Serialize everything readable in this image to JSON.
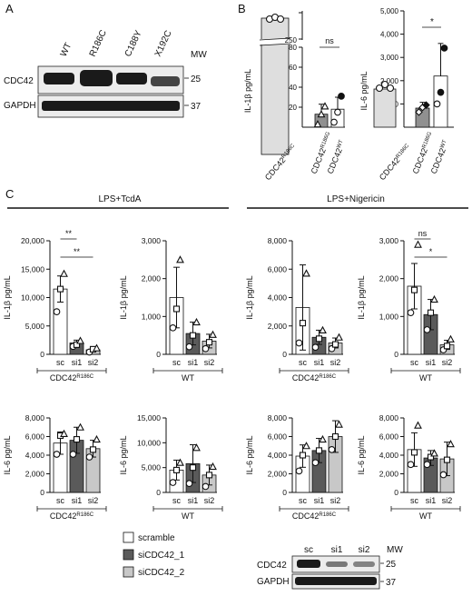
{
  "panels": {
    "a": "A",
    "b": "B",
    "c": "C"
  },
  "colors": {
    "sc": "#ffffff",
    "si1": "#5a5a5a",
    "si2": "#c8c8c8",
    "r186c": "#dedede",
    "r186g": "#909090",
    "wt_b": "#ffffff",
    "wt_b_bar": "#ffffff"
  },
  "blot_a": {
    "lanes": [
      "WT",
      "R186C",
      "C188Y",
      "X192C"
    ],
    "rows": [
      "CDC42",
      "GAPDH"
    ],
    "mw_label": "MW",
    "mw": [
      "25",
      "37"
    ]
  },
  "blot_c": {
    "lanes": [
      "sc",
      "si1",
      "si2"
    ],
    "rows": [
      "CDC42",
      "GAPDH"
    ],
    "mw_label": "MW",
    "mw": [
      "25",
      "37"
    ]
  },
  "conditions": {
    "left": "LPS+TcdA",
    "right": "LPS+Nigericin"
  },
  "legend": [
    "scramble",
    "siCDC42_1",
    "siCDC42_2"
  ],
  "sig": {
    "ns": "ns",
    "star": "*",
    "star2": "**"
  },
  "chart_data": [
    {
      "id": "B-IL1b",
      "type": "bar",
      "ylabel": "IL-1β pg/mL",
      "broken_axis": true,
      "upper_ticks": [
        "250"
      ],
      "lower_ticks": [
        "20",
        "40",
        "60",
        "80"
      ],
      "ylim_lower": [
        0,
        80
      ],
      "categories": [
        "CDC42R186C",
        "CDC42R186G",
        "CDC42WT"
      ],
      "values": [
        2500,
        13,
        18
      ],
      "sd": [
        0,
        10,
        12
      ],
      "points": [
        [
          2500,
          2500,
          2500
        ],
        [
          3,
          13,
          21
        ],
        [
          5,
          15,
          31
        ]
      ],
      "sig": {
        "pair": [
          1,
          2
        ],
        "label": "ns"
      }
    },
    {
      "id": "B-IL6",
      "type": "bar",
      "ylabel": "IL-6 pg/mL",
      "yticks": [
        "1,000",
        "2,000",
        "3,000",
        "4,000",
        "5,000"
      ],
      "ylim": [
        0,
        5000
      ],
      "categories": [
        "CDC42R186C",
        "CDC42R186G",
        "CDC42WT"
      ],
      "values": [
        1600,
        820,
        2200
      ],
      "sd": [
        0,
        250,
        1400
      ],
      "points": [
        [
          1400,
          1600,
          1800
        ],
        [
          650,
          850,
          950
        ],
        [
          1000,
          1500,
          3400
        ]
      ],
      "sig": {
        "pair": [
          1,
          2
        ],
        "label": "*"
      }
    },
    {
      "id": "C-TcdA-IL1b-R186C",
      "type": "bar",
      "ylabel": "IL-1β pg/mL",
      "yticks": [
        "0",
        "5,000",
        "10,000",
        "15,000",
        "20,000"
      ],
      "ylim": [
        0,
        20000
      ],
      "categories": [
        "sc",
        "si1",
        "si2"
      ],
      "group": "CDC42R186C",
      "values": [
        11500,
        2000,
        800
      ],
      "sd": [
        2300,
        500,
        300
      ],
      "points": [
        [
          7500,
          11500,
          14200
        ],
        [
          1400,
          1700,
          2400
        ],
        [
          400,
          900,
          1100
        ]
      ],
      "sig": [
        {
          "pair": [
            0,
            1
          ],
          "label": "**"
        },
        {
          "pair": [
            0,
            2
          ],
          "label": "**"
        }
      ]
    },
    {
      "id": "C-TcdA-IL1b-WT",
      "type": "bar",
      "ylabel": "IL-1β pg/mL",
      "yticks": [
        "0",
        "1,000",
        "2,000",
        "3,000"
      ],
      "ylim": [
        0,
        3000
      ],
      "categories": [
        "sc",
        "si1",
        "si2"
      ],
      "group": "WT",
      "values": [
        1500,
        550,
        350
      ],
      "sd": [
        800,
        300,
        180
      ],
      "points": [
        [
          700,
          1200,
          2500
        ],
        [
          200,
          500,
          850
        ],
        [
          150,
          320,
          520
        ]
      ]
    },
    {
      "id": "C-Nig-IL1b-R186C",
      "type": "bar",
      "ylabel": "IL-1β pg/mL",
      "yticks": [
        "0",
        "2,000",
        "4,000",
        "6,000",
        "8,000"
      ],
      "ylim": [
        0,
        8000
      ],
      "categories": [
        "sc",
        "si1",
        "si2"
      ],
      "group": "CDC42R186C",
      "values": [
        3300,
        1200,
        800
      ],
      "sd": [
        3000,
        500,
        350
      ],
      "points": [
        [
          800,
          2200,
          5700
        ],
        [
          500,
          1100,
          1700
        ],
        [
          400,
          700,
          1200
        ]
      ]
    },
    {
      "id": "C-Nig-IL1b-WT",
      "type": "bar",
      "ylabel": "IL-1β pg/mL",
      "yticks": [
        "0",
        "1,000",
        "2,000",
        "3,000"
      ],
      "ylim": [
        0,
        3000
      ],
      "categories": [
        "sc",
        "si1",
        "si2"
      ],
      "group": "WT",
      "values": [
        1800,
        1050,
        250
      ],
      "sd": [
        600,
        400,
        120
      ],
      "points": [
        [
          1100,
          1700,
          2900
        ],
        [
          650,
          1100,
          1450
        ],
        [
          120,
          220,
          400
        ]
      ],
      "sig": [
        {
          "pair": [
            0,
            1
          ],
          "label": "ns"
        },
        {
          "pair": [
            0,
            2
          ],
          "label": "*"
        }
      ]
    },
    {
      "id": "C-TcdA-IL6-R186C",
      "type": "bar",
      "ylabel": "IL-6 pg/mL",
      "yticks": [
        "0",
        "2,000",
        "4,000",
        "6,000",
        "8,000"
      ],
      "ylim": [
        0,
        8000
      ],
      "categories": [
        "sc",
        "si1",
        "si2"
      ],
      "group": "CDC42R186C",
      "values": [
        5300,
        5600,
        4700
      ],
      "sd": [
        1200,
        1400,
        900
      ],
      "points": [
        [
          4100,
          6100,
          6300
        ],
        [
          4100,
          5700,
          7000
        ],
        [
          3800,
          4600,
          5700
        ]
      ]
    },
    {
      "id": "C-TcdA-IL6-WT",
      "type": "bar",
      "ylabel": "IL-6 pg/mL",
      "yticks": [
        "0",
        "5,000",
        "10,000",
        "15,000"
      ],
      "ylim": [
        0,
        15000
      ],
      "categories": [
        "sc",
        "si1",
        "si2"
      ],
      "group": "WT",
      "values": [
        4500,
        5800,
        3500
      ],
      "sd": [
        2000,
        3800,
        2000
      ],
      "points": [
        [
          2000,
          4500,
          6000
        ],
        [
          1800,
          5000,
          9000
        ],
        [
          1200,
          3500,
          5200
        ]
      ]
    },
    {
      "id": "C-Nig-IL6-R186C",
      "type": "bar",
      "ylabel": "IL-6 pg/mL",
      "yticks": [
        "0",
        "2,000",
        "4,000",
        "6,000",
        "8,000"
      ],
      "ylim": [
        0,
        8000
      ],
      "categories": [
        "sc",
        "si1",
        "si2"
      ],
      "group": "CDC42R186C",
      "values": [
        3900,
        4500,
        6000
      ],
      "sd": [
        1200,
        1300,
        1700
      ],
      "points": [
        [
          2300,
          4000,
          5000
        ],
        [
          3200,
          4500,
          5700
        ],
        [
          4600,
          6000,
          7300
        ]
      ]
    },
    {
      "id": "C-Nig-IL6-WT",
      "type": "bar",
      "ylabel": "IL-6 pg/mL",
      "yticks": [
        "0",
        "2,000",
        "4,000",
        "6,000",
        "8,000"
      ],
      "ylim": [
        0,
        8000
      ],
      "categories": [
        "sc",
        "si1",
        "si2"
      ],
      "group": "WT",
      "values": [
        4600,
        3700,
        3600
      ],
      "sd": [
        1800,
        800,
        1800
      ],
      "points": [
        [
          3000,
          4300,
          7200
        ],
        [
          3000,
          3800,
          4200
        ],
        [
          1900,
          3500,
          5200
        ]
      ]
    }
  ]
}
